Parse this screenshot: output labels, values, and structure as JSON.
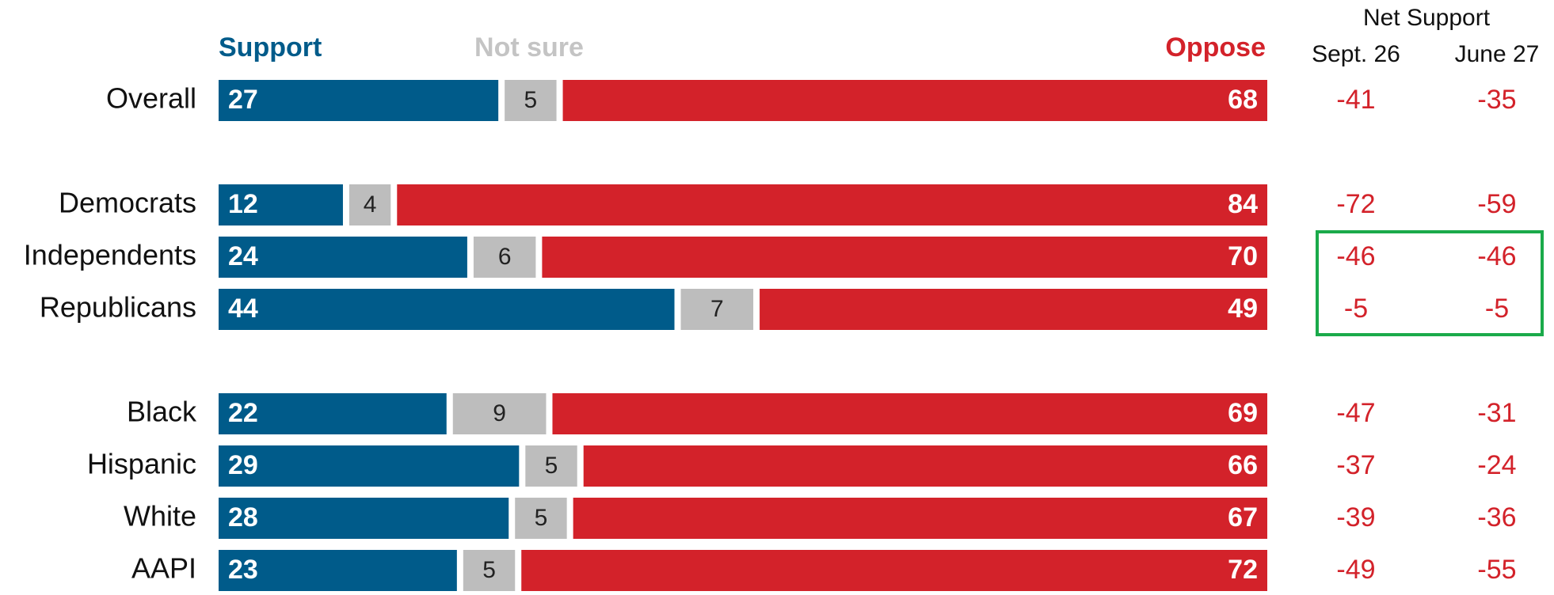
{
  "chart_data": {
    "type": "bar",
    "stacked": true,
    "orientation": "horizontal",
    "legend": {
      "support": "Support",
      "not_sure": "Not sure",
      "oppose": "Oppose"
    },
    "categories": [
      "Overall",
      "Democrats",
      "Independents",
      "Republicans",
      "Black",
      "Hispanic",
      "White",
      "AAPI"
    ],
    "series": [
      {
        "name": "Support",
        "color": "#005b8a",
        "values": [
          27,
          12,
          24,
          44,
          22,
          29,
          28,
          23
        ]
      },
      {
        "name": "Not sure",
        "color": "#bdbdbd",
        "values": [
          5,
          4,
          6,
          7,
          9,
          5,
          5,
          5
        ]
      },
      {
        "name": "Oppose",
        "color": "#d3222a",
        "values": [
          68,
          84,
          70,
          49,
          69,
          66,
          67,
          72
        ]
      }
    ],
    "net_support": {
      "header": "Net Support",
      "columns": [
        "Sept. 26",
        "June 27"
      ],
      "sept_26": [
        -41,
        -72,
        -46,
        -5,
        -47,
        -37,
        -39,
        -49
      ],
      "june_27": [
        -35,
        -59,
        -46,
        -5,
        -31,
        -24,
        -36,
        -55
      ],
      "text_color": "#d3222a",
      "highlighted_rows": [
        "Independents",
        "Republicans"
      ],
      "highlight_color": "#1aaa4a"
    },
    "groups": [
      [
        "Overall"
      ],
      [
        "Democrats",
        "Independents",
        "Republicans"
      ],
      [
        "Black",
        "Hispanic",
        "White",
        "AAPI"
      ]
    ]
  }
}
